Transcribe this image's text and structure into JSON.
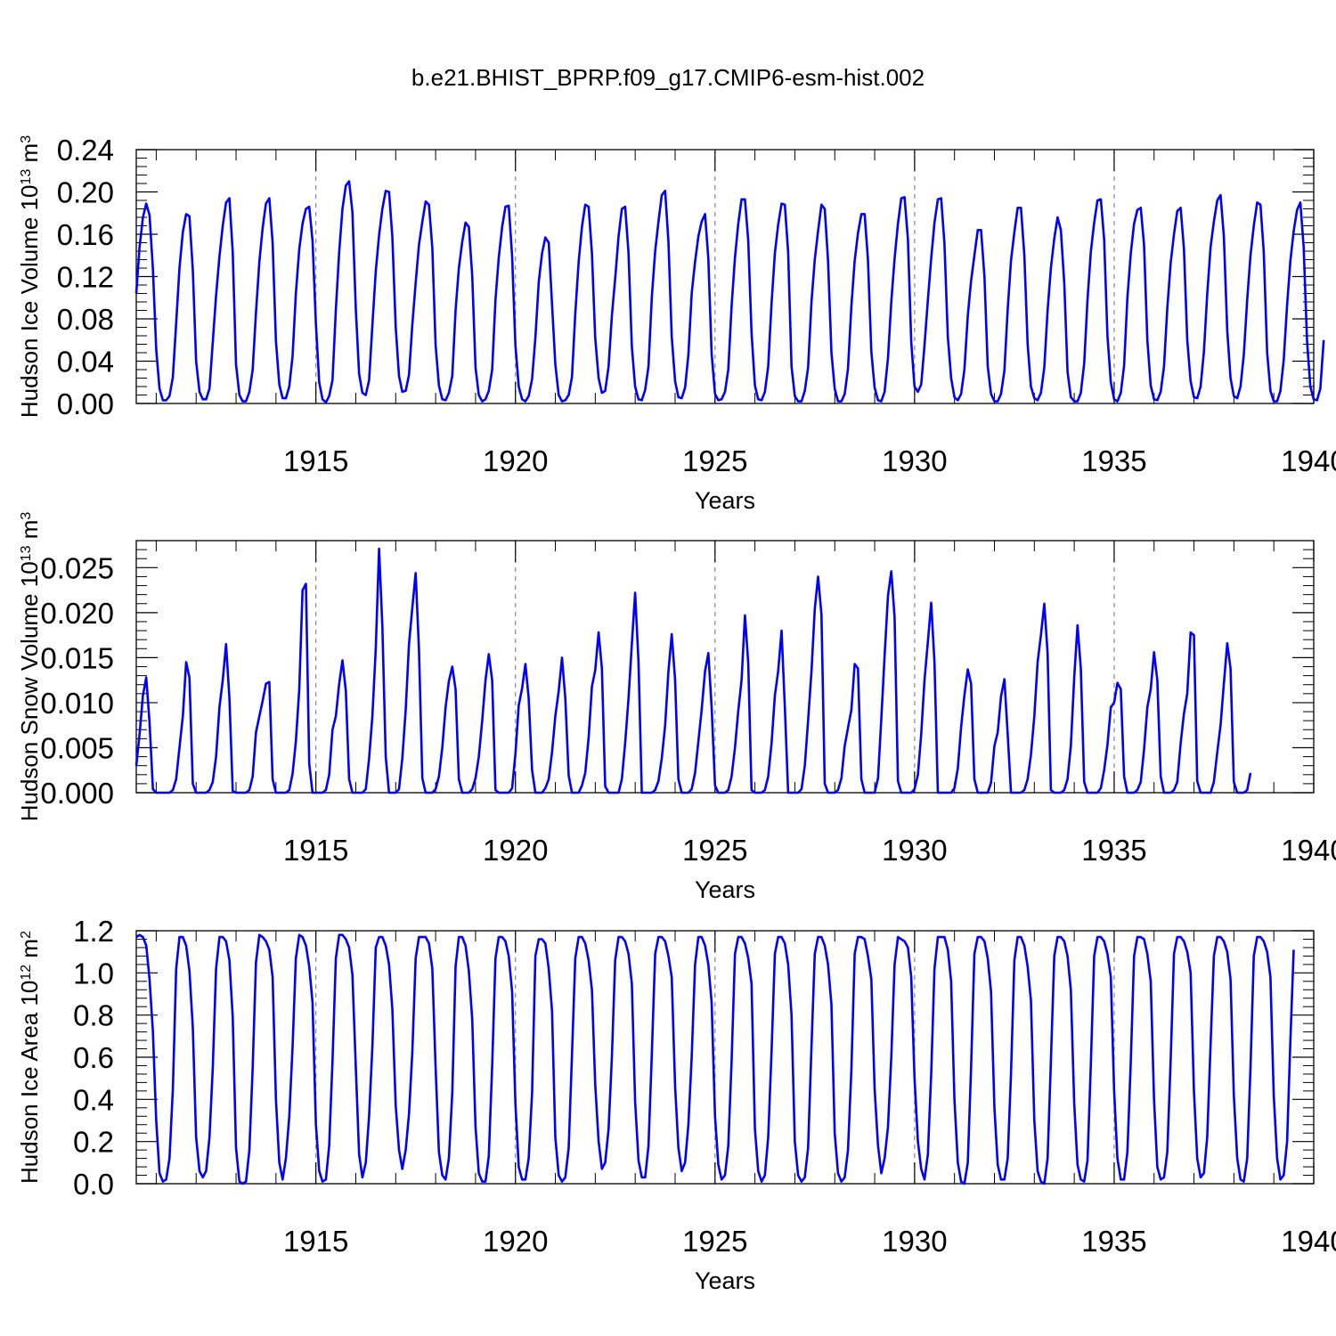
{
  "figure_title": "b.e21.BHIST_BPRP.f09_g17.CMIP6-esm-hist.002",
  "line_color": "#0000ff",
  "chart_data": [
    {
      "type": "line",
      "title": "b.e21.BHIST_BPRP.f09_g17.CMIP6-esm-hist.002",
      "ylabel_main": "Hudson Ice Volume 10",
      "ylabel_exp": "13",
      "ylabel_unit": " m",
      "ylabel_unit_exp": "3",
      "xlabel": "Years",
      "xlim": [
        1910.5,
        1940.0
      ],
      "ylim": [
        0.0,
        0.24
      ],
      "yticks": [
        0.0,
        0.04,
        0.08,
        0.12,
        0.16,
        0.2,
        0.24
      ],
      "ytick_labels": [
        "0.00",
        "0.04",
        "0.08",
        "0.12",
        "0.16",
        "0.20",
        "0.24"
      ],
      "xticks": [
        1915,
        1920,
        1925,
        1930,
        1935,
        1940
      ],
      "xtick_labels": [
        "1915",
        "1920",
        "1925",
        "1930",
        "1935",
        "1940"
      ],
      "series_name": "Hudson Ice Volume",
      "start_year": 1910.5,
      "step": 0.08333,
      "values": [
        0.104,
        0.148,
        0.176,
        0.189,
        0.178,
        0.127,
        0.051,
        0.014,
        0.003,
        0.003,
        0.007,
        0.025,
        0.076,
        0.128,
        0.162,
        0.179,
        0.177,
        0.126,
        0.04,
        0.011,
        0.004,
        0.004,
        0.014,
        0.058,
        0.102,
        0.139,
        0.168,
        0.19,
        0.194,
        0.143,
        0.037,
        0.008,
        0.002,
        0.002,
        0.011,
        0.032,
        0.086,
        0.134,
        0.166,
        0.189,
        0.194,
        0.152,
        0.059,
        0.018,
        0.005,
        0.005,
        0.016,
        0.045,
        0.104,
        0.146,
        0.17,
        0.184,
        0.186,
        0.154,
        0.075,
        0.02,
        0.004,
        0.001,
        0.007,
        0.022,
        0.089,
        0.143,
        0.184,
        0.206,
        0.21,
        0.181,
        0.089,
        0.028,
        0.01,
        0.008,
        0.022,
        0.074,
        0.125,
        0.159,
        0.184,
        0.201,
        0.2,
        0.158,
        0.072,
        0.026,
        0.011,
        0.012,
        0.027,
        0.074,
        0.114,
        0.15,
        0.172,
        0.191,
        0.188,
        0.147,
        0.055,
        0.017,
        0.004,
        0.003,
        0.01,
        0.026,
        0.088,
        0.128,
        0.153,
        0.171,
        0.167,
        0.121,
        0.034,
        0.008,
        0.002,
        0.004,
        0.012,
        0.032,
        0.098,
        0.138,
        0.167,
        0.186,
        0.187,
        0.139,
        0.055,
        0.016,
        0.004,
        0.002,
        0.007,
        0.023,
        0.062,
        0.115,
        0.142,
        0.157,
        0.152,
        0.094,
        0.037,
        0.008,
        0.002,
        0.003,
        0.008,
        0.025,
        0.085,
        0.134,
        0.167,
        0.188,
        0.186,
        0.142,
        0.062,
        0.024,
        0.01,
        0.012,
        0.035,
        0.083,
        0.118,
        0.158,
        0.184,
        0.186,
        0.142,
        0.054,
        0.016,
        0.004,
        0.003,
        0.013,
        0.035,
        0.1,
        0.144,
        0.172,
        0.197,
        0.201,
        0.153,
        0.063,
        0.021,
        0.006,
        0.005,
        0.015,
        0.046,
        0.104,
        0.134,
        0.158,
        0.172,
        0.179,
        0.137,
        0.047,
        0.009,
        0.003,
        0.004,
        0.011,
        0.032,
        0.092,
        0.138,
        0.17,
        0.193,
        0.193,
        0.154,
        0.067,
        0.017,
        0.004,
        0.003,
        0.011,
        0.035,
        0.095,
        0.142,
        0.169,
        0.189,
        0.188,
        0.143,
        0.035,
        0.007,
        0.002,
        0.002,
        0.012,
        0.034,
        0.096,
        0.136,
        0.163,
        0.188,
        0.184,
        0.135,
        0.048,
        0.014,
        0.002,
        0.002,
        0.009,
        0.033,
        0.092,
        0.135,
        0.161,
        0.179,
        0.179,
        0.136,
        0.049,
        0.015,
        0.003,
        0.002,
        0.011,
        0.043,
        0.096,
        0.137,
        0.17,
        0.194,
        0.195,
        0.155,
        0.058,
        0.016,
        0.011,
        0.018,
        0.055,
        0.098,
        0.137,
        0.171,
        0.193,
        0.194,
        0.151,
        0.063,
        0.024,
        0.006,
        0.003,
        0.009,
        0.032,
        0.083,
        0.116,
        0.14,
        0.164,
        0.164,
        0.12,
        0.035,
        0.009,
        0.002,
        0.002,
        0.009,
        0.031,
        0.089,
        0.135,
        0.162,
        0.185,
        0.185,
        0.14,
        0.056,
        0.016,
        0.005,
        0.003,
        0.01,
        0.034,
        0.088,
        0.128,
        0.156,
        0.176,
        0.164,
        0.114,
        0.03,
        0.006,
        0.002,
        0.002,
        0.01,
        0.038,
        0.098,
        0.143,
        0.171,
        0.192,
        0.193,
        0.155,
        0.064,
        0.02,
        0.004,
        0.002,
        0.01,
        0.036,
        0.1,
        0.142,
        0.17,
        0.183,
        0.185,
        0.15,
        0.06,
        0.017,
        0.004,
        0.003,
        0.011,
        0.035,
        0.09,
        0.133,
        0.16,
        0.182,
        0.185,
        0.146,
        0.06,
        0.021,
        0.006,
        0.005,
        0.016,
        0.049,
        0.103,
        0.148,
        0.172,
        0.192,
        0.197,
        0.158,
        0.069,
        0.024,
        0.007,
        0.005,
        0.016,
        0.046,
        0.098,
        0.14,
        0.168,
        0.19,
        0.188,
        0.143,
        0.048,
        0.012,
        0.002,
        0.002,
        0.012,
        0.041,
        0.093,
        0.135,
        0.163,
        0.183,
        0.19,
        0.148,
        0.059,
        0.016,
        0.004,
        0.003,
        0.014,
        0.06
      ]
    },
    {
      "type": "line",
      "ylabel_main": "Hudson Snow Volume 10",
      "ylabel_exp": "13",
      "ylabel_unit": " m",
      "ylabel_unit_exp": "3",
      "xlabel": "Years",
      "xlim": [
        1910.5,
        1940.0
      ],
      "ylim": [
        0.0,
        0.028
      ],
      "yticks": [
        0.0,
        0.005,
        0.01,
        0.015,
        0.02,
        0.025
      ],
      "ytick_labels": [
        "0.000",
        "0.005",
        "0.010",
        "0.015",
        "0.020",
        "0.025"
      ],
      "xticks": [
        1915,
        1920,
        1925,
        1930,
        1935,
        1940
      ],
      "xtick_labels": [
        "1915",
        "1920",
        "1925",
        "1930",
        "1935",
        "1940"
      ],
      "series_name": "Hudson Snow Volume",
      "start_year": 1910.5,
      "step": 0.08333,
      "values": [
        0.003,
        0.0065,
        0.0108,
        0.0128,
        0.0078,
        0.0004,
        0.0,
        0.0,
        0.0,
        0.0,
        0.0,
        0.0003,
        0.0015,
        0.005,
        0.0085,
        0.0145,
        0.0128,
        0.001,
        0.0,
        0.0,
        0.0,
        0.0,
        0.0003,
        0.0012,
        0.004,
        0.0095,
        0.0125,
        0.0165,
        0.0105,
        0.0002,
        0.0,
        0.0,
        0.0,
        0.0,
        0.0003,
        0.0018,
        0.0067,
        0.0085,
        0.0102,
        0.0121,
        0.0123,
        0.0015,
        0.0,
        0.0,
        0.0,
        0.0,
        0.0003,
        0.0021,
        0.0057,
        0.0115,
        0.0225,
        0.0232,
        0.0032,
        0.0,
        0.0,
        0.0,
        0.0,
        0.0003,
        0.002,
        0.007,
        0.0085,
        0.0121,
        0.0147,
        0.0113,
        0.0015,
        0.0,
        0.0,
        0.0,
        0.0,
        0.0004,
        0.0038,
        0.0085,
        0.016,
        0.0271,
        0.0185,
        0.004,
        0.0,
        0.0,
        0.0,
        0.0004,
        0.0038,
        0.0092,
        0.0165,
        0.0205,
        0.0244,
        0.0159,
        0.0016,
        0.0,
        0.0,
        0.0,
        0.0004,
        0.0018,
        0.005,
        0.0095,
        0.0124,
        0.014,
        0.0115,
        0.0015,
        0.0,
        0.0,
        0.0,
        0.0004,
        0.0016,
        0.004,
        0.008,
        0.0125,
        0.0154,
        0.0125,
        0.0003,
        0.0,
        0.0,
        0.0,
        0.0,
        0.0005,
        0.0043,
        0.0097,
        0.0116,
        0.0143,
        0.0105,
        0.0025,
        0.0,
        0.0,
        0.0,
        0.0005,
        0.0015,
        0.0045,
        0.0085,
        0.0113,
        0.015,
        0.0105,
        0.0019,
        0.0,
        0.0,
        0.0,
        0.0008,
        0.0022,
        0.0061,
        0.0118,
        0.0136,
        0.0178,
        0.0138,
        0.0007,
        0.0,
        0.0,
        0.0,
        0.0,
        0.0015,
        0.0055,
        0.0105,
        0.0165,
        0.0222,
        0.0145,
        0.0,
        0.0,
        0.0,
        0.0,
        0.0003,
        0.0013,
        0.0038,
        0.0075,
        0.0135,
        0.0176,
        0.0125,
        0.0015,
        0.0,
        0.0,
        0.0,
        0.0004,
        0.0022,
        0.0057,
        0.0092,
        0.0135,
        0.0155,
        0.0095,
        0.0008,
        0.0,
        0.0,
        0.0,
        0.0003,
        0.0018,
        0.005,
        0.0091,
        0.0125,
        0.0197,
        0.0144,
        0.0003,
        0.0,
        0.0,
        0.0,
        0.0003,
        0.0018,
        0.0055,
        0.0108,
        0.0135,
        0.018,
        0.0095,
        0.0,
        0.0,
        0.0,
        0.0,
        0.0004,
        0.003,
        0.008,
        0.0135,
        0.0204,
        0.024,
        0.0198,
        0.001,
        0.0,
        0.0,
        0.0,
        0.0003,
        0.0016,
        0.0052,
        0.0072,
        0.0092,
        0.0143,
        0.0138,
        0.0015,
        0.0,
        0.0,
        0.0,
        0.0,
        0.0016,
        0.0082,
        0.0152,
        0.0219,
        0.0246,
        0.0195,
        0.0013,
        0.0,
        0.0,
        0.0,
        0.0,
        0.0004,
        0.002,
        0.0065,
        0.0125,
        0.0168,
        0.0211,
        0.0145,
        0.0,
        0.0,
        0.0,
        0.0,
        0.0,
        0.0005,
        0.0027,
        0.0073,
        0.0108,
        0.0137,
        0.0121,
        0.0015,
        0.0,
        0.0,
        0.0,
        0.0,
        0.0011,
        0.0052,
        0.0067,
        0.0107,
        0.0126,
        0.0065,
        0.0,
        0.0,
        0.0,
        0.0,
        0.0003,
        0.0015,
        0.0042,
        0.0085,
        0.0145,
        0.0175,
        0.021,
        0.0155,
        0.0003,
        0.0,
        0.0,
        0.0,
        0.0003,
        0.0015,
        0.0052,
        0.0128,
        0.0186,
        0.0138,
        0.0012,
        0.0,
        0.0,
        0.0,
        0.0,
        0.0005,
        0.0025,
        0.0053,
        0.0095,
        0.01,
        0.0122,
        0.0115,
        0.0018,
        0.0,
        0.0,
        0.0,
        0.0003,
        0.0012,
        0.0048,
        0.0095,
        0.0115,
        0.0156,
        0.0125,
        0.0018,
        0.0,
        0.0,
        0.0,
        0.0003,
        0.0012,
        0.0055,
        0.0088,
        0.011,
        0.0178,
        0.0175,
        0.0013,
        0.0,
        0.0,
        0.0,
        0.0,
        0.0012,
        0.0045,
        0.0075,
        0.0121,
        0.0166,
        0.0138,
        0.0012,
        0.0,
        0.0,
        0.0,
        0.0003,
        0.0022
      ]
    },
    {
      "type": "line",
      "ylabel_main": "Hudson Ice Area 10",
      "ylabel_exp": "12",
      "ylabel_unit": " m",
      "ylabel_unit_exp": "2",
      "xlabel": "Years",
      "xlim": [
        1910.5,
        1940.0
      ],
      "ylim": [
        0.0,
        1.2
      ],
      "yticks": [
        0.0,
        0.2,
        0.4,
        0.6,
        0.8,
        1.0,
        1.2
      ],
      "ytick_labels": [
        "0.0",
        "0.2",
        "0.4",
        "0.6",
        "0.8",
        "1.0",
        "1.2"
      ],
      "xticks": [
        1915,
        1920,
        1925,
        1930,
        1935,
        1940
      ],
      "xtick_labels": [
        "1915",
        "1920",
        "1925",
        "1930",
        "1935",
        "1940"
      ],
      "series_name": "Hudson Ice Area",
      "start_year": 1910.5,
      "step": 0.08333,
      "values": [
        1.17,
        1.18,
        1.17,
        1.13,
        0.97,
        0.72,
        0.3,
        0.05,
        0.01,
        0.02,
        0.12,
        0.45,
        1.02,
        1.17,
        1.17,
        1.13,
        1.01,
        0.74,
        0.22,
        0.06,
        0.03,
        0.06,
        0.22,
        0.55,
        1.02,
        1.17,
        1.17,
        1.15,
        1.06,
        0.79,
        0.17,
        0.01,
        0.0,
        0.01,
        0.16,
        0.55,
        1.05,
        1.18,
        1.17,
        1.15,
        1.11,
        0.98,
        0.4,
        0.1,
        0.02,
        0.12,
        0.32,
        0.65,
        1.07,
        1.18,
        1.17,
        1.13,
        1.03,
        0.86,
        0.28,
        0.06,
        0.01,
        0.02,
        0.18,
        0.58,
        1.07,
        1.18,
        1.18,
        1.16,
        1.12,
        0.99,
        0.55,
        0.14,
        0.03,
        0.1,
        0.32,
        0.65,
        1.12,
        1.17,
        1.17,
        1.13,
        1.04,
        0.83,
        0.37,
        0.16,
        0.07,
        0.16,
        0.33,
        0.62,
        1.07,
        1.17,
        1.17,
        1.17,
        1.14,
        1.02,
        0.55,
        0.15,
        0.04,
        0.02,
        0.12,
        0.43,
        1.03,
        1.17,
        1.17,
        1.13,
        1.01,
        0.78,
        0.27,
        0.05,
        0.01,
        0.01,
        0.13,
        0.56,
        1.07,
        1.17,
        1.17,
        1.15,
        1.08,
        0.91,
        0.38,
        0.08,
        0.02,
        0.02,
        0.12,
        0.43,
        1.08,
        1.16,
        1.16,
        1.14,
        1.02,
        0.82,
        0.22,
        0.04,
        0.01,
        0.03,
        0.17,
        0.61,
        1.07,
        1.17,
        1.17,
        1.14,
        1.06,
        0.92,
        0.47,
        0.2,
        0.07,
        0.1,
        0.26,
        0.6,
        1.06,
        1.17,
        1.17,
        1.15,
        1.09,
        0.95,
        0.39,
        0.11,
        0.03,
        0.03,
        0.18,
        0.61,
        1.09,
        1.17,
        1.17,
        1.15,
        1.08,
        0.98,
        0.46,
        0.17,
        0.06,
        0.1,
        0.28,
        0.6,
        1.04,
        1.17,
        1.17,
        1.13,
        1.04,
        0.86,
        0.32,
        0.09,
        0.02,
        0.04,
        0.18,
        0.58,
        1.09,
        1.17,
        1.17,
        1.14,
        1.07,
        0.95,
        0.26,
        0.06,
        0.01,
        0.04,
        0.22,
        0.63,
        1.09,
        1.17,
        1.17,
        1.14,
        1.04,
        0.8,
        0.2,
        0.04,
        0.01,
        0.03,
        0.17,
        0.65,
        1.09,
        1.17,
        1.17,
        1.13,
        1.04,
        0.85,
        0.24,
        0.05,
        0.01,
        0.03,
        0.16,
        0.54,
        1.09,
        1.17,
        1.17,
        1.16,
        1.08,
        0.97,
        0.45,
        0.18,
        0.05,
        0.12,
        0.27,
        0.6,
        1.04,
        1.17,
        1.16,
        1.15,
        1.12,
        0.98,
        0.5,
        0.2,
        0.07,
        0.02,
        0.14,
        0.52,
        1.02,
        1.17,
        1.17,
        1.17,
        1.11,
        0.96,
        0.4,
        0.1,
        0.01,
        0.0,
        0.1,
        0.55,
        1.09,
        1.17,
        1.17,
        1.15,
        1.07,
        0.91,
        0.36,
        0.09,
        0.02,
        0.02,
        0.12,
        0.52,
        1.06,
        1.17,
        1.17,
        1.13,
        1.03,
        0.87,
        0.3,
        0.06,
        0.01,
        0.0,
        0.12,
        0.58,
        1.08,
        1.17,
        1.17,
        1.15,
        1.08,
        0.92,
        0.38,
        0.09,
        0.02,
        0.01,
        0.11,
        0.56,
        1.08,
        1.17,
        1.17,
        1.15,
        1.09,
        0.98,
        0.44,
        0.12,
        0.02,
        0.02,
        0.15,
        0.58,
        1.08,
        1.17,
        1.17,
        1.16,
        1.09,
        0.96,
        0.4,
        0.08,
        0.02,
        0.03,
        0.15,
        0.59,
        1.09,
        1.17,
        1.17,
        1.15,
        1.1,
        1.0,
        0.44,
        0.12,
        0.03,
        0.05,
        0.22,
        0.66,
        1.08,
        1.17,
        1.17,
        1.15,
        1.1,
        0.97,
        0.42,
        0.12,
        0.02,
        0.01,
        0.12,
        0.55,
        1.08,
        1.17,
        1.17,
        1.15,
        1.1,
        0.98,
        0.42,
        0.12,
        0.02,
        0.04,
        0.2,
        0.68,
        1.11
      ]
    }
  ]
}
